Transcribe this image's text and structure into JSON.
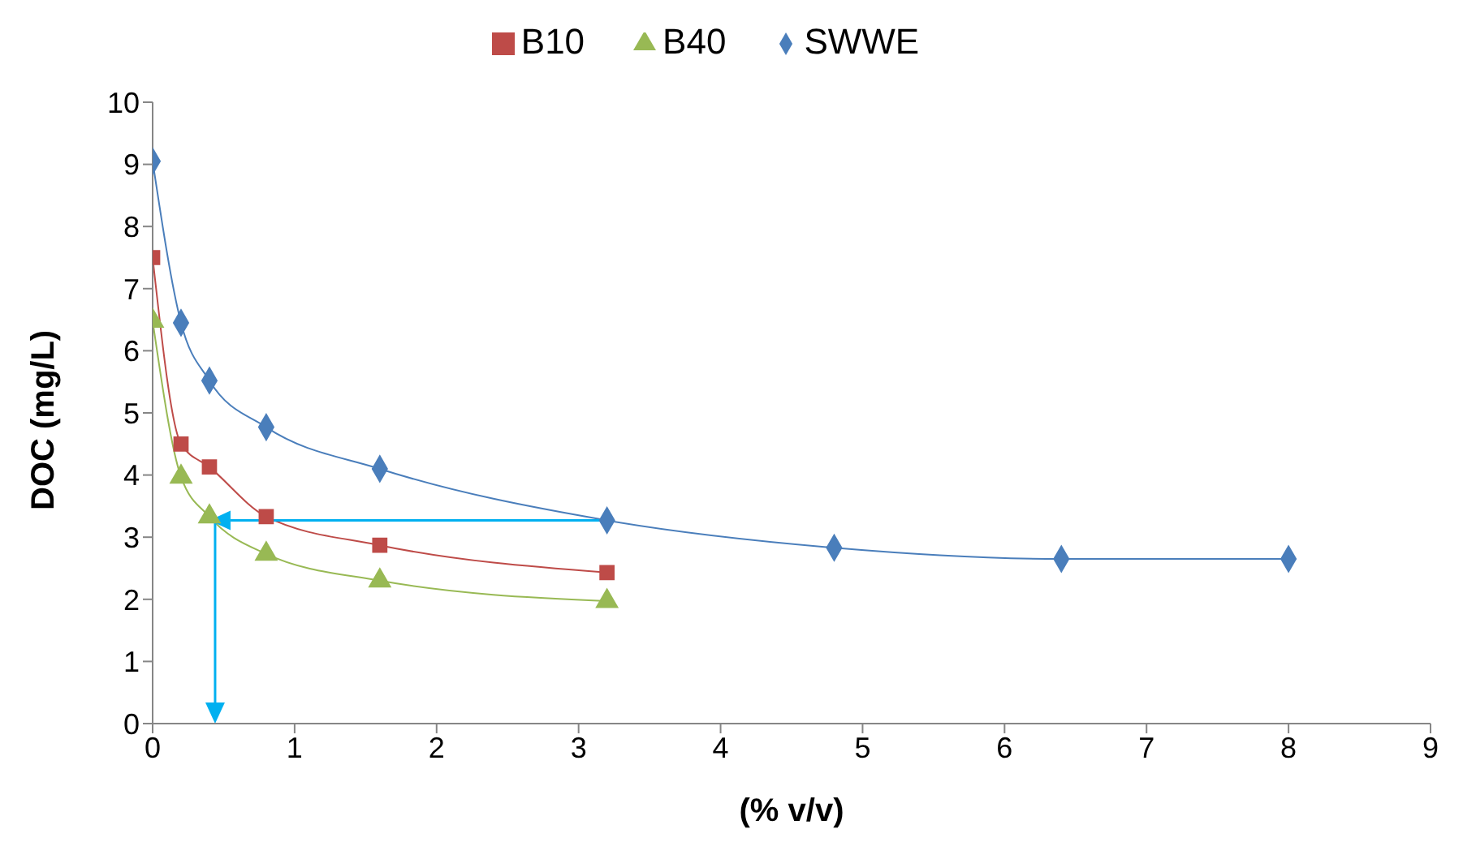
{
  "chart_data": {
    "type": "line",
    "xlabel": "(% v/v)",
    "ylabel": "DOC (mg/L)",
    "x": [
      0,
      0.2,
      0.4,
      0.8,
      1.6,
      3.2,
      4.8,
      6.4,
      8
    ],
    "series": [
      {
        "name": "SWWE",
        "color": "#4a7ebb",
        "marker": "diamond",
        "values": [
          9.05,
          6.45,
          5.52,
          4.77,
          4.1,
          3.27,
          2.83,
          2.65,
          2.65
        ]
      },
      {
        "name": "B10",
        "color": "#be4b48",
        "marker": "square",
        "values": [
          7.5,
          4.5,
          4.13,
          3.33,
          2.87,
          2.43,
          null,
          null,
          null
        ]
      },
      {
        "name": "B40",
        "color": "#98b954",
        "marker": "triangle",
        "values": [
          6.48,
          3.97,
          3.33,
          2.73,
          2.3,
          1.97,
          null,
          null,
          null
        ]
      }
    ],
    "xlim": [
      0,
      9
    ],
    "xticks": [
      0,
      1,
      2,
      3,
      4,
      5,
      6,
      7,
      8,
      9
    ],
    "ylim": [
      0,
      10
    ],
    "yticks": [
      0,
      1,
      2,
      3,
      4,
      5,
      6,
      7,
      8,
      9,
      10
    ],
    "grid": false,
    "legend": "top"
  }
}
